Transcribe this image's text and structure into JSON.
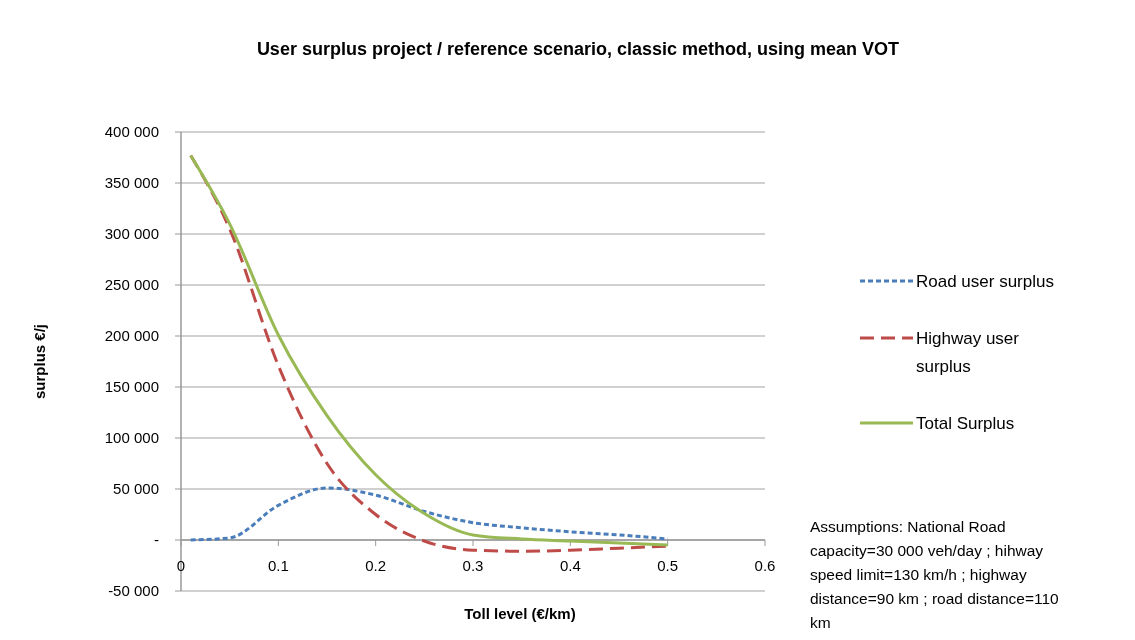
{
  "chart_data": {
    "type": "line",
    "title": "User surplus project / reference scenario, classic method, using mean VOT",
    "xlabel": "Toll level (€/km)",
    "ylabel": "surplus €/j",
    "x": [
      0.01,
      0.05,
      0.1,
      0.15,
      0.2,
      0.25,
      0.3,
      0.35,
      0.4,
      0.45,
      0.5
    ],
    "series": [
      {
        "name": "Road user surplus",
        "color": "#4a7ebb",
        "line_style": "dotted",
        "values": [
          0,
          2000,
          34000,
          51000,
          44000,
          28000,
          17000,
          12000,
          8000,
          5000,
          1000
        ]
      },
      {
        "name": "Highway user surplus",
        "color": "#be4b48",
        "line_style": "dashed",
        "values": [
          377000,
          305000,
          171000,
          75000,
          25000,
          -1000,
          -10000,
          -11000,
          -10000,
          -8000,
          -6000
        ]
      },
      {
        "name": "Total Surplus",
        "color": "#98b954",
        "line_style": "solid",
        "values": [
          377000,
          310000,
          201000,
          122000,
          64000,
          26000,
          5000,
          1000,
          -1000,
          -3000,
          -5000
        ]
      }
    ],
    "xlim": [
      0,
      0.6
    ],
    "xticks": [
      0,
      0.1,
      0.2,
      0.3,
      0.4,
      0.5,
      0.6
    ],
    "ylim": [
      -50000,
      400000
    ],
    "yticks": [
      {
        "value": -50000,
        "label": "-50 000"
      },
      {
        "value": 0,
        "label": "-"
      },
      {
        "value": 50000,
        "label": "50 000"
      },
      {
        "value": 100000,
        "label": "100 000"
      },
      {
        "value": 150000,
        "label": "150 000"
      },
      {
        "value": 200000,
        "label": "200 000"
      },
      {
        "value": 250000,
        "label": "250 000"
      },
      {
        "value": 300000,
        "label": "300 000"
      },
      {
        "value": 350000,
        "label": "350 000"
      },
      {
        "value": 400000,
        "label": "400 000"
      }
    ],
    "grid": "y",
    "legend": "right",
    "annotations": [
      "Assumptions: National Road capacity=30 000 veh/day ; hihway speed limit=130 km/h ; highway distance=90 km ; road distance=110 km"
    ]
  }
}
